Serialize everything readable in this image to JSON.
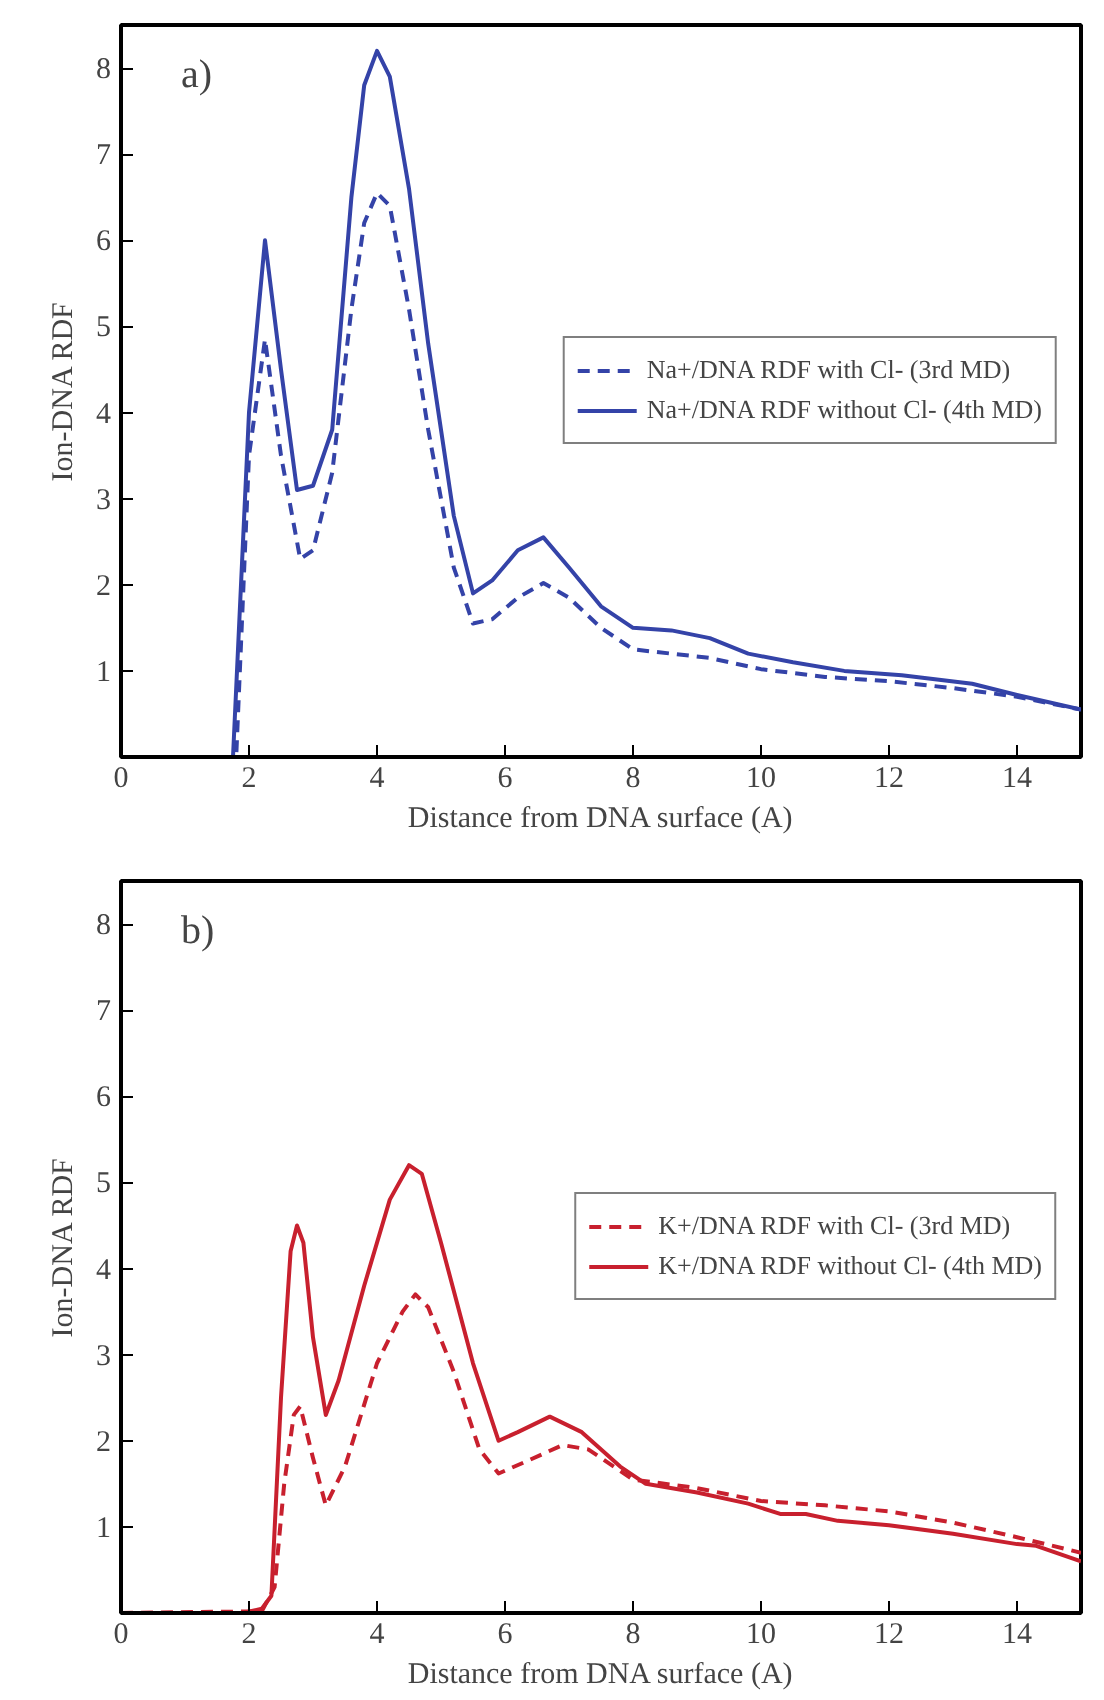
{
  "chart_data": [
    {
      "type": "line",
      "xlabel": "Distance from DNA surface (A)",
      "ylabel": "Ion-DNA RDF",
      "annotations": [
        "a)"
      ],
      "xlim": [
        0,
        15
      ],
      "ylim": [
        0,
        8.5
      ],
      "xticks": [
        0,
        2,
        4,
        6,
        8,
        10,
        12,
        14
      ],
      "yticks": [
        1,
        2,
        3,
        4,
        5,
        6,
        7,
        8
      ],
      "grid": false,
      "legend": "right",
      "series": [
        {
          "name": "Na+/DNA RDF with Cl- (3rd MD)",
          "color": "#3443a8",
          "line_style": "dashed",
          "x": [
            0,
            1.7,
            1.8,
            2.0,
            2.25,
            2.5,
            2.8,
            3.0,
            3.3,
            3.6,
            3.8,
            4.0,
            4.2,
            4.5,
            4.8,
            5.2,
            5.5,
            5.8,
            6.2,
            6.6,
            7.0,
            7.5,
            8.0,
            8.6,
            9.2,
            10,
            11,
            12,
            13,
            14,
            15
          ],
          "values": [
            0,
            0,
            0,
            3.5,
            4.85,
            3.5,
            2.3,
            2.4,
            3.3,
            5.2,
            6.2,
            6.55,
            6.4,
            5.2,
            3.8,
            2.2,
            1.55,
            1.6,
            1.85,
            2.02,
            1.85,
            1.5,
            1.25,
            1.2,
            1.15,
            1.02,
            0.93,
            0.88,
            0.8,
            0.7,
            0.55
          ]
        },
        {
          "name": "Na+/DNA RDF without Cl- (4th MD)",
          "color": "#3443a8",
          "line_style": "solid",
          "x": [
            0,
            1.7,
            1.75,
            2.0,
            2.25,
            2.5,
            2.75,
            3.0,
            3.3,
            3.6,
            3.8,
            4.0,
            4.2,
            4.5,
            4.8,
            5.2,
            5.5,
            5.8,
            6.2,
            6.6,
            7.0,
            7.5,
            8.0,
            8.6,
            9.2,
            9.8,
            10.5,
            11.3,
            12.2,
            13.3,
            14,
            15
          ],
          "values": [
            0,
            0,
            0,
            4.0,
            6.0,
            4.5,
            3.1,
            3.15,
            3.8,
            6.5,
            7.8,
            8.2,
            7.9,
            6.6,
            4.8,
            2.8,
            1.9,
            2.05,
            2.4,
            2.55,
            2.2,
            1.75,
            1.5,
            1.47,
            1.38,
            1.2,
            1.1,
            1.0,
            0.95,
            0.85,
            0.72,
            0.55
          ]
        }
      ]
    },
    {
      "type": "line",
      "xlabel": "Distance from DNA surface (A)",
      "ylabel": "Ion-DNA RDF",
      "annotations": [
        "b)"
      ],
      "xlim": [
        0,
        15
      ],
      "ylim": [
        0,
        8.5
      ],
      "xticks": [
        0,
        2,
        4,
        6,
        8,
        10,
        12,
        14
      ],
      "yticks": [
        1,
        2,
        3,
        4,
        5,
        6,
        7,
        8
      ],
      "grid": false,
      "legend": "right",
      "series": [
        {
          "name": "K+/DNA RDF with Cl- (3rd MD)",
          "color": "#c8202e",
          "line_style": "dashed",
          "x": [
            0,
            2.2,
            2.4,
            2.55,
            2.7,
            2.8,
            3.0,
            3.2,
            3.5,
            4.0,
            4.4,
            4.6,
            4.8,
            5.2,
            5.6,
            5.9,
            6.3,
            6.9,
            7.3,
            8.0,
            9.0,
            10.0,
            11,
            12,
            13,
            14,
            15
          ],
          "values": [
            0,
            0.02,
            0.3,
            1.5,
            2.3,
            2.4,
            1.8,
            1.25,
            1.7,
            2.9,
            3.5,
            3.7,
            3.55,
            2.8,
            1.9,
            1.62,
            1.75,
            1.95,
            1.9,
            1.55,
            1.45,
            1.3,
            1.25,
            1.18,
            1.05,
            0.88,
            0.7
          ]
        },
        {
          "name": "K+/DNA RDF without Cl- (4th MD)",
          "color": "#c8202e",
          "line_style": "solid",
          "x": [
            0,
            1.9,
            2.2,
            2.35,
            2.5,
            2.65,
            2.75,
            2.85,
            3.0,
            3.2,
            3.4,
            3.8,
            4.2,
            4.5,
            4.7,
            5.0,
            5.5,
            5.9,
            6.2,
            6.7,
            7.2,
            7.8,
            8.2,
            9.0,
            9.8,
            10.3,
            10.7,
            11.2,
            12,
            13,
            14,
            14.3,
            15
          ],
          "values": [
            0,
            0,
            0.05,
            0.2,
            2.5,
            4.2,
            4.5,
            4.3,
            3.2,
            2.3,
            2.7,
            3.8,
            4.8,
            5.2,
            5.1,
            4.3,
            2.9,
            2.0,
            2.1,
            2.28,
            2.1,
            1.7,
            1.5,
            1.4,
            1.27,
            1.15,
            1.15,
            1.07,
            1.02,
            0.92,
            0.8,
            0.78,
            0.6
          ]
        }
      ]
    }
  ]
}
